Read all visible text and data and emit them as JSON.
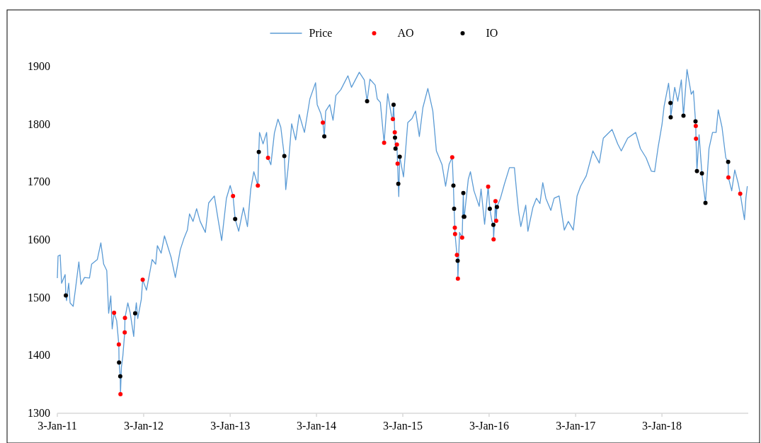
{
  "chart_data": {
    "type": "line",
    "legend": "top",
    "grid": false,
    "xlim": [
      "2011-01-03",
      "2019-01-03"
    ],
    "xticks": [
      {
        "value": "2011-01-03",
        "label": "3-Jan-11"
      },
      {
        "value": "2012-01-03",
        "label": "3-Jan-12"
      },
      {
        "value": "2013-01-03",
        "label": "3-Jan-13"
      },
      {
        "value": "2014-01-03",
        "label": "3-Jan-14"
      },
      {
        "value": "2015-01-03",
        "label": "3-Jan-15"
      },
      {
        "value": "2016-01-03",
        "label": "3-Jan-16"
      },
      {
        "value": "2017-01-03",
        "label": "3-Jan-17"
      },
      {
        "value": "2018-01-03",
        "label": "3-Jan-18"
      }
    ],
    "ylim": [
      1300,
      1900
    ],
    "yticks": [
      1300,
      1400,
      1500,
      1600,
      1700,
      1800,
      1900
    ],
    "series": [
      {
        "name": "Price",
        "color": "#5b9bd5",
        "marker": "none",
        "line_style": "solid",
        "x": [
          "2011-01-03",
          "2011-01-06",
          "2011-01-15",
          "2011-01-21",
          "2011-02-05",
          "2011-02-08",
          "2011-02-11",
          "2011-02-20",
          "2011-02-26",
          "2011-03-11",
          "2011-03-20",
          "2011-04-04",
          "2011-04-13",
          "2011-04-28",
          "2011-05-19",
          "2011-05-28",
          "2011-06-21",
          "2011-07-06",
          "2011-07-18",
          "2011-07-31",
          "2011-08-08",
          "2011-08-17",
          "2011-08-23",
          "2011-08-31",
          "2011-09-11",
          "2011-09-20",
          "2011-09-21",
          "2011-09-26",
          "2011-09-27",
          "2011-10-01",
          "2011-10-07",
          "2011-10-15",
          "2011-10-16",
          "2011-10-28",
          "2011-11-07",
          "2011-11-22",
          "2011-11-28",
          "2011-12-03",
          "2011-12-09",
          "2011-12-24",
          "2011-12-30",
          "2012-01-15",
          "2012-02-08",
          "2012-02-23",
          "2012-03-01",
          "2012-03-17",
          "2012-03-31",
          "2012-04-28",
          "2012-05-16",
          "2012-06-06",
          "2012-06-21",
          "2012-07-06",
          "2012-07-15",
          "2012-07-30",
          "2012-08-14",
          "2012-08-29",
          "2012-09-20",
          "2012-10-04",
          "2012-10-28",
          "2012-11-13",
          "2012-11-28",
          "2012-12-18",
          "2013-01-03",
          "2013-01-15",
          "2013-01-24",
          "2013-02-08",
          "2013-02-28",
          "2013-03-17",
          "2013-03-31",
          "2013-04-13",
          "2013-04-30",
          "2013-05-04",
          "2013-05-07",
          "2013-05-22",
          "2013-06-06",
          "2013-06-12",
          "2013-06-24",
          "2013-07-09",
          "2013-07-24",
          "2013-08-05",
          "2013-08-20",
          "2013-08-26",
          "2013-09-05",
          "2013-09-20",
          "2013-10-07",
          "2013-10-22",
          "2013-11-13",
          "2013-12-06",
          "2013-12-30",
          "2014-01-06",
          "2014-01-21",
          "2014-01-30",
          "2014-02-05",
          "2014-02-11",
          "2014-02-28",
          "2014-03-14",
          "2014-03-26",
          "2014-04-16",
          "2014-05-16",
          "2014-05-31",
          "2014-07-03",
          "2014-07-24",
          "2014-08-05",
          "2014-08-17",
          "2014-09-08",
          "2014-09-17",
          "2014-09-30",
          "2014-10-16",
          "2014-10-31",
          "2014-11-16",
          "2014-11-22",
          "2014-11-25",
          "2014-11-30",
          "2014-12-01",
          "2014-12-03",
          "2014-12-09",
          "2014-12-12",
          "2014-12-15",
          "2014-12-17",
          "2014-12-21",
          "2015-01-06",
          "2015-01-24",
          "2015-02-11",
          "2015-02-26",
          "2015-03-14",
          "2015-03-29",
          "2015-04-19",
          "2015-05-10",
          "2015-05-25",
          "2015-06-18",
          "2015-07-03",
          "2015-07-18",
          "2015-07-31",
          "2015-08-05",
          "2015-08-08",
          "2015-08-11",
          "2015-08-12",
          "2015-08-20",
          "2015-08-23",
          "2015-08-24",
          "2015-08-31",
          "2015-09-11",
          "2015-09-16",
          "2015-09-18",
          "2015-09-20",
          "2015-10-07",
          "2015-10-16",
          "2015-10-31",
          "2015-11-22",
          "2015-11-30",
          "2015-12-15",
          "2015-12-30",
          "2016-01-06",
          "2016-01-15",
          "2016-01-21",
          "2016-01-22",
          "2016-01-30",
          "2016-02-02",
          "2016-02-05",
          "2016-02-20",
          "2016-03-08",
          "2016-03-29",
          "2016-04-19",
          "2016-04-30",
          "2016-05-07",
          "2016-05-16",
          "2016-06-06",
          "2016-06-15",
          "2016-07-06",
          "2016-07-21",
          "2016-08-05",
          "2016-08-17",
          "2016-08-30",
          "2016-09-20",
          "2016-10-04",
          "2016-10-25",
          "2016-11-16",
          "2016-12-03",
          "2016-12-24",
          "2017-01-09",
          "2017-01-24",
          "2017-02-17",
          "2017-03-17",
          "2017-04-13",
          "2017-04-30",
          "2017-06-06",
          "2017-06-30",
          "2017-07-15",
          "2017-08-11",
          "2017-09-14",
          "2017-10-04",
          "2017-10-28",
          "2017-11-19",
          "2017-12-03",
          "2017-12-18",
          "2018-01-03",
          "2018-01-12",
          "2018-01-31",
          "2018-02-08",
          "2018-02-09",
          "2018-02-26",
          "2018-03-11",
          "2018-03-26",
          "2018-04-04",
          "2018-04-19",
          "2018-05-07",
          "2018-05-16",
          "2018-05-25",
          "2018-05-26",
          "2018-05-27",
          "2018-05-31",
          "2018-06-09",
          "2018-06-21",
          "2018-06-27",
          "2018-07-06",
          "2018-07-21",
          "2018-08-05",
          "2018-08-20",
          "2018-08-29",
          "2018-09-14",
          "2018-09-30",
          "2018-10-10",
          "2018-10-11",
          "2018-10-25",
          "2018-11-07",
          "2018-11-22",
          "2018-11-30",
          "2018-12-18",
          "2018-12-24",
          "2018-12-30"
        ],
        "values": [
          1534,
          1572,
          1574,
          1525,
          1540,
          1504,
          1495,
          1525,
          1491,
          1485,
          1513,
          1562,
          1523,
          1535,
          1534,
          1558,
          1566,
          1595,
          1558,
          1547,
          1473,
          1503,
          1446,
          1474,
          1460,
          1419,
          1388,
          1364,
          1333,
          1380,
          1399,
          1440,
          1465,
          1491,
          1474,
          1433,
          1473,
          1491,
          1464,
          1497,
          1531,
          1513,
          1566,
          1558,
          1590,
          1577,
          1607,
          1570,
          1535,
          1583,
          1602,
          1617,
          1645,
          1632,
          1654,
          1632,
          1613,
          1664,
          1676,
          1635,
          1599,
          1672,
          1694,
          1676,
          1636,
          1615,
          1656,
          1623,
          1688,
          1718,
          1694,
          1752,
          1786,
          1766,
          1786,
          1742,
          1730,
          1785,
          1809,
          1795,
          1745,
          1687,
          1725,
          1801,
          1773,
          1817,
          1786,
          1844,
          1872,
          1834,
          1819,
          1803,
          1779,
          1823,
          1834,
          1807,
          1850,
          1860,
          1884,
          1864,
          1890,
          1877,
          1840,
          1878,
          1868,
          1844,
          1838,
          1768,
          1853,
          1815,
          1809,
          1834,
          1786,
          1777,
          1758,
          1765,
          1732,
          1697,
          1675,
          1744,
          1709,
          1803,
          1810,
          1823,
          1779,
          1829,
          1862,
          1823,
          1754,
          1730,
          1693,
          1731,
          1743,
          1694,
          1654,
          1621,
          1610,
          1574,
          1564,
          1533,
          1613,
          1604,
          1681,
          1640,
          1640,
          1705,
          1718,
          1685,
          1658,
          1688,
          1627,
          1692,
          1654,
          1632,
          1626,
          1601,
          1667,
          1633,
          1657,
          1672,
          1697,
          1725,
          1725,
          1676,
          1648,
          1623,
          1660,
          1615,
          1656,
          1672,
          1663,
          1699,
          1672,
          1651,
          1672,
          1676,
          1617,
          1632,
          1617,
          1676,
          1693,
          1711,
          1754,
          1733,
          1776,
          1791,
          1766,
          1754,
          1776,
          1786,
          1758,
          1742,
          1719,
          1718,
          1761,
          1799,
          1831,
          1871,
          1837,
          1812,
          1864,
          1840,
          1877,
          1815,
          1895,
          1852,
          1858,
          1805,
          1797,
          1775,
          1719,
          1782,
          1715,
          1693,
          1664,
          1758,
          1786,
          1786,
          1825,
          1795,
          1742,
          1735,
          1708,
          1685,
          1721,
          1697,
          1680,
          1635,
          1672,
          1693
        ]
      },
      {
        "name": "AO",
        "type": "scatter",
        "color": "#ff0000",
        "marker": "circle",
        "x": [
          "2011-08-31",
          "2011-09-20",
          "2011-09-27",
          "2011-10-15",
          "2011-10-16",
          "2011-12-30",
          "2013-01-15",
          "2013-04-30",
          "2013-06-12",
          "2014-01-30",
          "2014-10-16",
          "2014-11-22",
          "2014-11-30",
          "2014-12-09",
          "2014-12-12",
          "2015-07-31",
          "2015-08-11",
          "2015-08-12",
          "2015-08-20",
          "2015-08-24",
          "2015-09-11",
          "2015-12-30",
          "2016-01-22",
          "2016-01-30",
          "2016-02-02",
          "2018-05-26",
          "2018-05-27",
          "2018-10-11",
          "2018-11-30"
        ],
        "values": [
          1474,
          1419,
          1333,
          1440,
          1465,
          1531,
          1676,
          1694,
          1742,
          1803,
          1768,
          1809,
          1786,
          1765,
          1732,
          1743,
          1621,
          1610,
          1574,
          1533,
          1604,
          1692,
          1601,
          1667,
          1633,
          1797,
          1775,
          1708,
          1680
        ]
      },
      {
        "name": "IO",
        "type": "scatter",
        "color": "#000000",
        "marker": "circle",
        "x": [
          "2011-02-08",
          "2011-09-21",
          "2011-09-26",
          "2011-11-28",
          "2013-01-24",
          "2013-05-04",
          "2013-08-20",
          "2014-02-05",
          "2014-08-05",
          "2014-11-25",
          "2014-12-01",
          "2014-12-03",
          "2014-12-15",
          "2014-12-21",
          "2015-08-05",
          "2015-08-08",
          "2015-08-23",
          "2015-09-16",
          "2015-09-18",
          "2015-09-20",
          "2016-01-06",
          "2016-01-21",
          "2016-02-05",
          "2018-02-08",
          "2018-02-09",
          "2018-04-04",
          "2018-05-25",
          "2018-05-31",
          "2018-06-21",
          "2018-07-06",
          "2018-10-10"
        ],
        "values": [
          1504,
          1388,
          1364,
          1473,
          1636,
          1752,
          1745,
          1779,
          1840,
          1834,
          1777,
          1758,
          1697,
          1744,
          1694,
          1654,
          1564,
          1681,
          1640,
          1640,
          1654,
          1626,
          1657,
          1837,
          1812,
          1815,
          1805,
          1719,
          1715,
          1664,
          1735
        ]
      }
    ]
  }
}
